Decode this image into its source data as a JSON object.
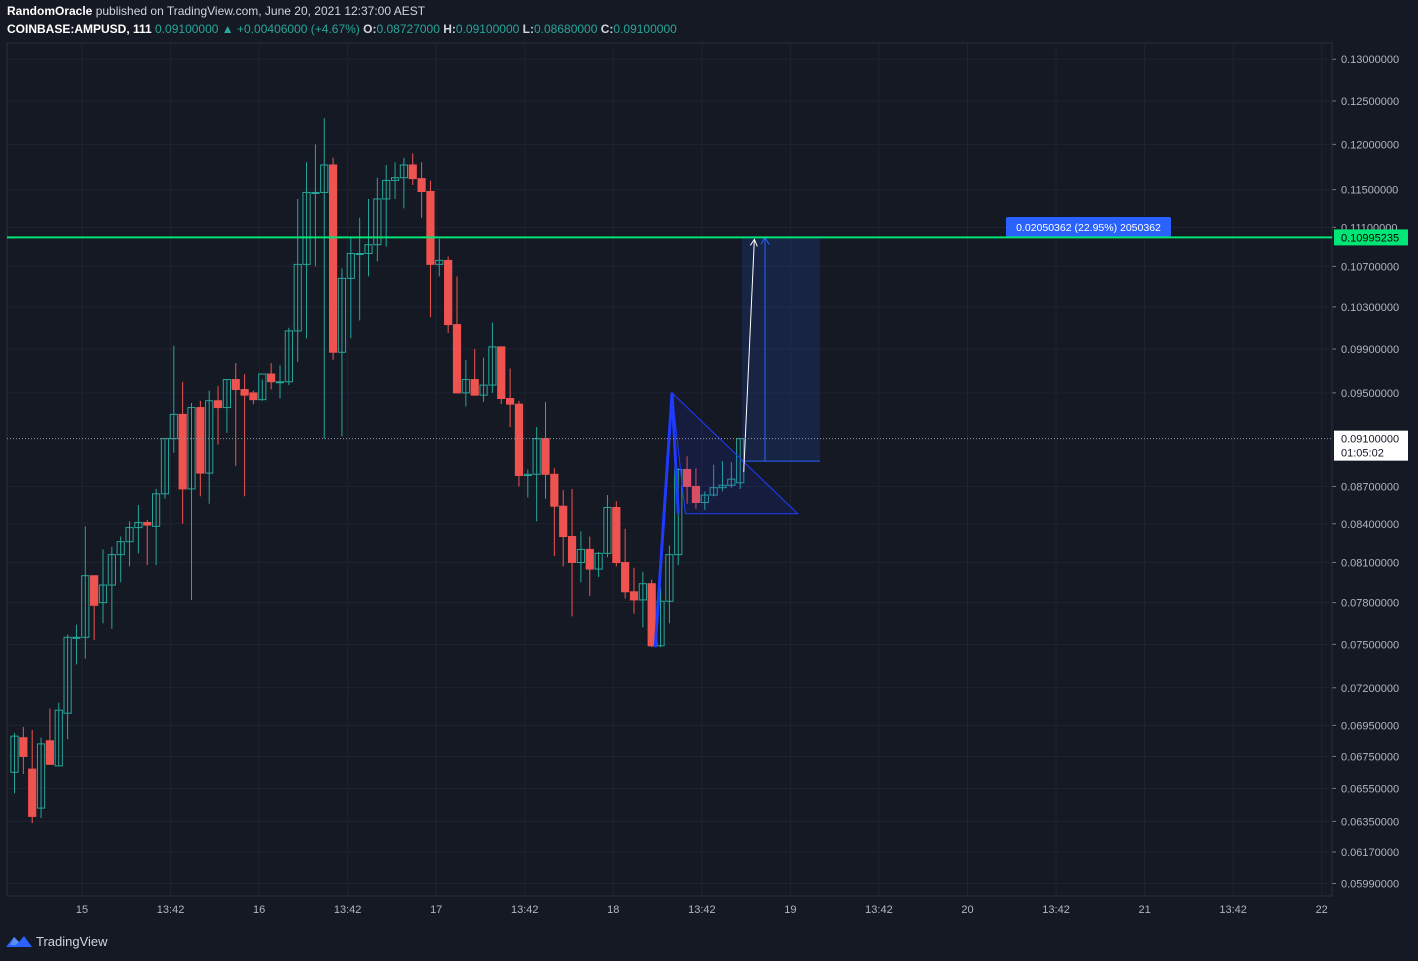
{
  "header": {
    "author": "RandomOracle",
    "published": "published on TradingView.com, June 20, 2021 12:37:00 AEST",
    "symbol": "COINBASE:AMPUSD, 111",
    "last": "0.09100000",
    "change_arrow": "▲",
    "change": "+0.00406000 (+4.67%)",
    "o_label": "O:",
    "o": "0.08727000",
    "h_label": "H:",
    "h": "0.09100000",
    "l_label": "L:",
    "l": "0.08680000",
    "c_label": "C:",
    "c": "0.09100000"
  },
  "footer": {
    "brand": "TradingView",
    "logo_icon": "tradingview-logo-icon"
  },
  "colors": {
    "background": "#151924",
    "grid": "#1f2330",
    "up": "#26a69a",
    "down": "#ef5350",
    "level": "#00e676",
    "pattern": "#1f3bff",
    "measure": "#2962ff"
  },
  "chart_data": {
    "type": "candlestick",
    "y_scale": "log",
    "ylim": [
      0.0592,
      0.132
    ],
    "y_ticks": [
      "0.13000000",
      "0.12500000",
      "0.12000000",
      "0.11500000",
      "0.11100000",
      "0.10700000",
      "0.10300000",
      "0.09900000",
      "0.09500000",
      "0.08700000",
      "0.08400000",
      "0.08100000",
      "0.07800000",
      "0.07500000",
      "0.07200000",
      "0.06950000",
      "0.06750000",
      "0.06550000",
      "0.06350000",
      "0.06170000",
      "0.05990000"
    ],
    "x_ticks": [
      "15",
      "13:42",
      "16",
      "13:42",
      "17",
      "13:42",
      "18",
      "13:42",
      "19",
      "13:42",
      "20",
      "13:42",
      "21",
      "13:42",
      "22"
    ],
    "candles": [
      [
        0.0665,
        0.069,
        0.0652,
        0.0688
      ],
      [
        0.0687,
        0.0694,
        0.0664,
        0.0675
      ],
      [
        0.0667,
        0.0692,
        0.0634,
        0.0638
      ],
      [
        0.0643,
        0.0687,
        0.0637,
        0.0683
      ],
      [
        0.0685,
        0.0706,
        0.067,
        0.067
      ],
      [
        0.0669,
        0.071,
        0.0669,
        0.0705
      ],
      [
        0.0703,
        0.0757,
        0.0686,
        0.0755
      ],
      [
        0.0755,
        0.0764,
        0.0736,
        0.0755
      ],
      [
        0.0755,
        0.0838,
        0.074,
        0.08
      ],
      [
        0.08,
        0.08,
        0.0753,
        0.0778
      ],
      [
        0.078,
        0.082,
        0.0765,
        0.0793
      ],
      [
        0.0793,
        0.0822,
        0.0761,
        0.0816
      ],
      [
        0.0816,
        0.083,
        0.0795,
        0.0826
      ],
      [
        0.0826,
        0.0842,
        0.0807,
        0.0837
      ],
      [
        0.0837,
        0.0855,
        0.0817,
        0.0841
      ],
      [
        0.0841,
        0.0843,
        0.0808,
        0.0839
      ],
      [
        0.0838,
        0.0868,
        0.0808,
        0.0864
      ],
      [
        0.0864,
        0.091,
        0.086,
        0.091
      ],
      [
        0.091,
        0.0993,
        0.0898,
        0.0931
      ],
      [
        0.0931,
        0.096,
        0.084,
        0.0868
      ],
      [
        0.0868,
        0.0941,
        0.0782,
        0.0937
      ],
      [
        0.0937,
        0.0943,
        0.0862,
        0.0881
      ],
      [
        0.0881,
        0.0952,
        0.0856,
        0.0943
      ],
      [
        0.0943,
        0.0956,
        0.0905,
        0.0937
      ],
      [
        0.0937,
        0.0962,
        0.0915,
        0.0962
      ],
      [
        0.0962,
        0.0977,
        0.0887,
        0.0953
      ],
      [
        0.0953,
        0.0967,
        0.0862,
        0.0948
      ],
      [
        0.095,
        0.0952,
        0.094,
        0.0944
      ],
      [
        0.0944,
        0.0962,
        0.0943,
        0.0967
      ],
      [
        0.0967,
        0.0977,
        0.0953,
        0.096
      ],
      [
        0.096,
        0.0975,
        0.0945,
        0.096
      ],
      [
        0.096,
        0.101,
        0.0957,
        0.1007
      ],
      [
        0.1007,
        0.114,
        0.0978,
        0.1072
      ],
      [
        0.1072,
        0.118,
        0.1,
        0.1147
      ],
      [
        0.1147,
        0.12,
        0.107,
        0.1147
      ],
      [
        0.1147,
        0.123,
        0.091,
        0.1177
      ],
      [
        0.1177,
        0.1185,
        0.098,
        0.0987
      ],
      [
        0.0987,
        0.1068,
        0.0912,
        0.1058
      ],
      [
        0.1058,
        0.11,
        0.1,
        0.1083
      ],
      [
        0.1083,
        0.112,
        0.1017,
        0.1083
      ],
      [
        0.1083,
        0.114,
        0.106,
        0.1092
      ],
      [
        0.1092,
        0.1163,
        0.1075,
        0.114
      ],
      [
        0.114,
        0.1177,
        0.109,
        0.116
      ],
      [
        0.116,
        0.118,
        0.114,
        0.1163
      ],
      [
        0.1163,
        0.1185,
        0.113,
        0.1177
      ],
      [
        0.1177,
        0.119,
        0.1155,
        0.1162
      ],
      [
        0.1162,
        0.118,
        0.112,
        0.1148
      ],
      [
        0.1148,
        0.116,
        0.102,
        0.1072
      ],
      [
        0.1072,
        0.1098,
        0.106,
        0.1076
      ],
      [
        0.1076,
        0.108,
        0.1005,
        0.1013
      ],
      [
        0.1013,
        0.106,
        0.095,
        0.095
      ],
      [
        0.095,
        0.098,
        0.0938,
        0.0962
      ],
      [
        0.0962,
        0.099,
        0.0948,
        0.0948
      ],
      [
        0.0948,
        0.0982,
        0.0942,
        0.0957
      ],
      [
        0.0957,
        0.1015,
        0.095,
        0.0992
      ],
      [
        0.0992,
        0.0992,
        0.094,
        0.0945
      ],
      [
        0.0945,
        0.0972,
        0.092,
        0.094
      ],
      [
        0.094,
        0.0943,
        0.087,
        0.0879
      ],
      [
        0.0879,
        0.0884,
        0.0861,
        0.088
      ],
      [
        0.088,
        0.092,
        0.0842,
        0.091
      ],
      [
        0.091,
        0.0942,
        0.086,
        0.088
      ],
      [
        0.088,
        0.0885,
        0.0815,
        0.0854
      ],
      [
        0.0854,
        0.0867,
        0.0807,
        0.083
      ],
      [
        0.083,
        0.0868,
        0.077,
        0.081
      ],
      [
        0.081,
        0.0834,
        0.0795,
        0.082
      ],
      [
        0.082,
        0.083,
        0.0785,
        0.0805
      ],
      [
        0.0805,
        0.0818,
        0.0799,
        0.0817
      ],
      [
        0.0817,
        0.0863,
        0.0814,
        0.0853
      ],
      [
        0.0853,
        0.0858,
        0.0807,
        0.081
      ],
      [
        0.081,
        0.0836,
        0.0783,
        0.0788
      ],
      [
        0.0788,
        0.0806,
        0.0772,
        0.0782
      ],
      [
        0.0782,
        0.0803,
        0.0762,
        0.0794
      ],
      [
        0.0794,
        0.0797,
        0.0748,
        0.0749
      ],
      [
        0.0749,
        0.0792,
        0.0748,
        0.0781
      ],
      [
        0.0781,
        0.0823,
        0.0765,
        0.0816
      ],
      [
        0.0816,
        0.0885,
        0.0808,
        0.0884
      ],
      [
        0.0884,
        0.0895,
        0.0856,
        0.087
      ],
      [
        0.087,
        0.0885,
        0.0852,
        0.0857
      ],
      [
        0.0857,
        0.0866,
        0.0851,
        0.0863
      ],
      [
        0.0863,
        0.0888,
        0.0862,
        0.0869
      ],
      [
        0.0869,
        0.0891,
        0.0866,
        0.0871
      ],
      [
        0.0871,
        0.089,
        0.0869,
        0.0876
      ],
      [
        0.0873,
        0.091,
        0.0868,
        0.091
      ]
    ],
    "horizontal_level": {
      "price": "0.10995235"
    },
    "last_price": {
      "price": "0.09100000",
      "countdown": "01:05:02"
    },
    "measure_label": "0.02050362 (22.95%) 2050362",
    "grid": true
  }
}
